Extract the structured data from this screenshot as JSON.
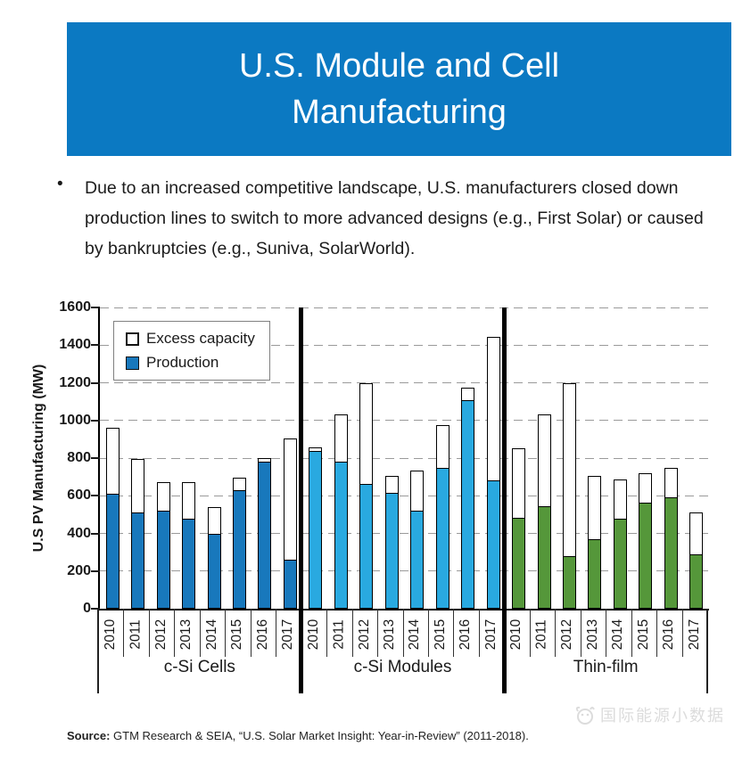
{
  "header": {
    "title": "U.S. Module and Cell Manufacturing"
  },
  "body": {
    "bullet_glyph": "•",
    "bullet_text": "Due to an increased competitive landscape, U.S. manufacturers closed down production lines to switch to more advanced designs (e.g., First Solar) or caused by bankruptcies (e.g., Suniva, SolarWorld)."
  },
  "chart_data": {
    "type": "bar",
    "stacked": true,
    "title": "",
    "xlabel": "",
    "ylabel": "U.S PV Manufacturing (MW)",
    "ylim": [
      0,
      1600
    ],
    "ytick_step": 200,
    "grid": "dashed-horizontal",
    "legend_position": "top-left-inside",
    "categories": [
      "2010",
      "2011",
      "2012",
      "2013",
      "2014",
      "2015",
      "2016",
      "2017"
    ],
    "series": [
      {
        "name": "Excess capacity",
        "fill": "#ffffff"
      },
      {
        "name": "Production",
        "fill": "#1878bc"
      }
    ],
    "groups": [
      {
        "label": "c-Si Cells",
        "bar_color": "#1878bc",
        "production": [
          610,
          510,
          520,
          480,
          400,
          630,
          780,
          260
        ],
        "excess_capacity": [
          350,
          285,
          150,
          190,
          140,
          65,
          20,
          645
        ],
        "total_capacity": [
          960,
          795,
          670,
          670,
          540,
          695,
          800,
          905
        ]
      },
      {
        "label": "c-Si Modules",
        "bar_color": "#29a9e0",
        "production": [
          840,
          780,
          665,
          615,
          520,
          750,
          1110,
          680
        ],
        "excess_capacity": [
          15,
          250,
          535,
          90,
          215,
          225,
          65,
          765
        ],
        "total_capacity": [
          855,
          1030,
          1200,
          705,
          735,
          975,
          1175,
          1445
        ]
      },
      {
        "label": "Thin-film",
        "bar_color": "#55973a",
        "production": [
          485,
          545,
          280,
          370,
          480,
          565,
          590,
          290
        ],
        "excess_capacity": [
          365,
          485,
          920,
          335,
          205,
          155,
          160,
          220
        ],
        "total_capacity": [
          850,
          1030,
          1200,
          705,
          685,
          720,
          750,
          510
        ]
      }
    ]
  },
  "footer": {
    "source_label": "Source:",
    "source_text": "GTM Research & SEIA, “U.S. Solar Market Insight: Year-in-Review” (2011-2018).",
    "watermark": "国际能源小数据"
  },
  "colors": {
    "banner_blue": "#0b79c2",
    "cells_blue": "#1878bc",
    "modules_blue": "#29a9e0",
    "thinfilm_green": "#55973a",
    "gridline_gray": "#9a9a9a"
  }
}
